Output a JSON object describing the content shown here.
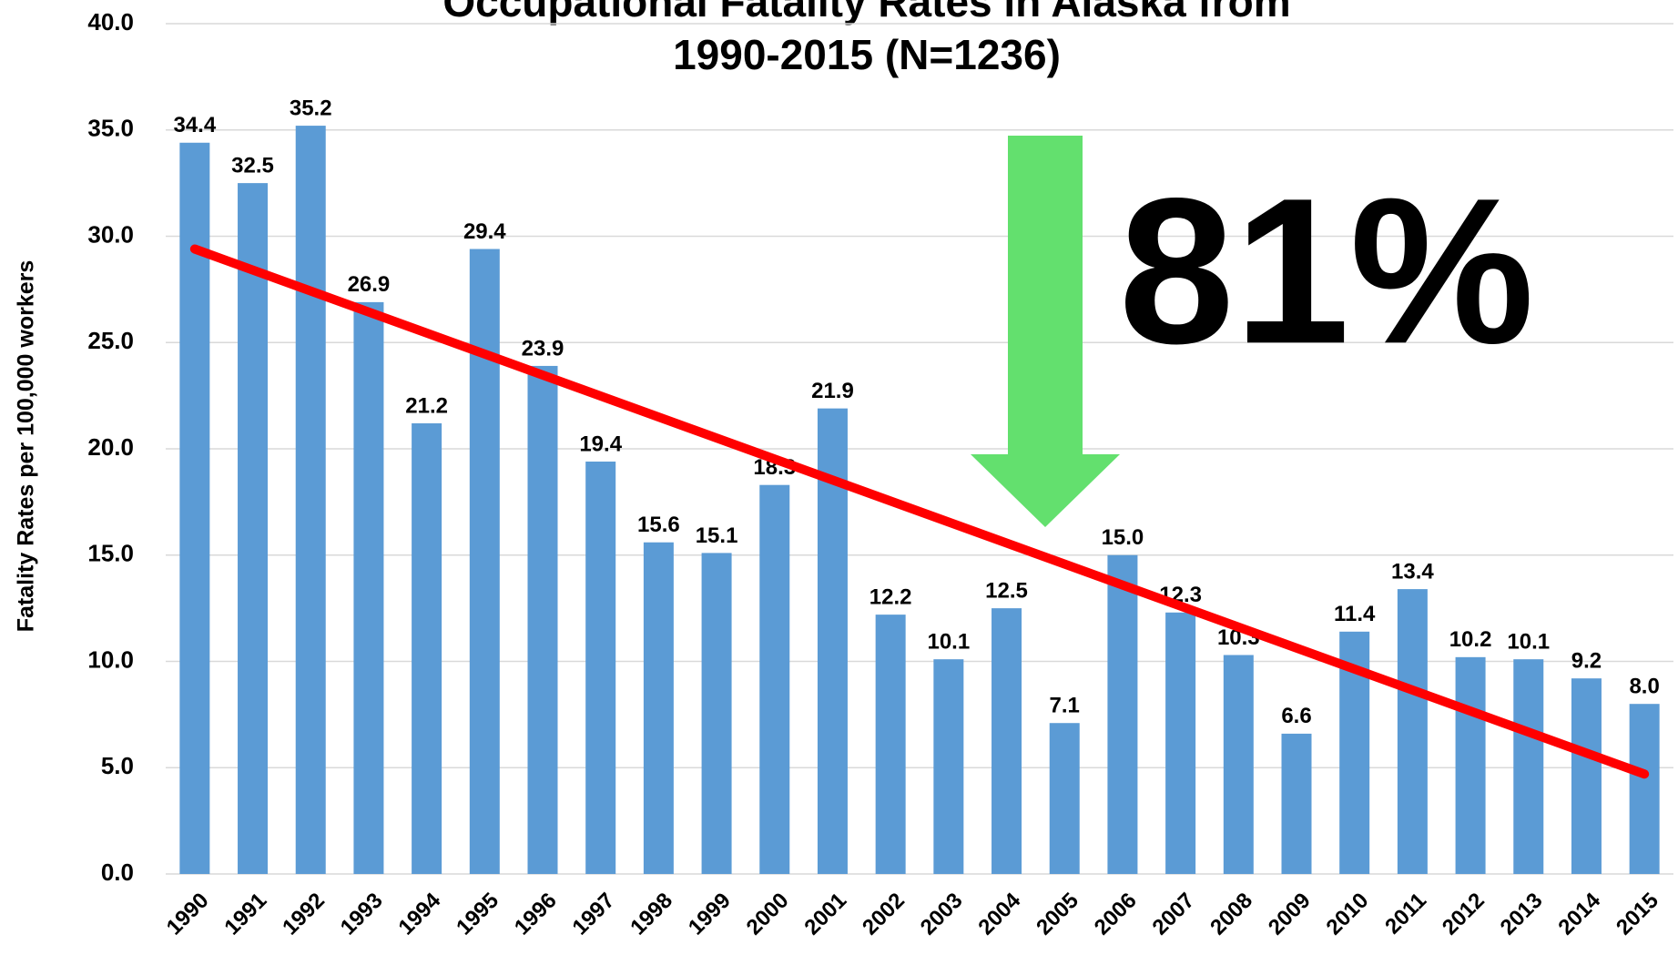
{
  "chart_data": {
    "type": "bar",
    "title": [
      "Occupational Fatality Rates in Alaska from",
      "1990-2015 (N=1236)"
    ],
    "y_axis_label": "Fatality Rates per 100,000 workers",
    "annotation": "81%",
    "categories": [
      "1990",
      "1991",
      "1992",
      "1993",
      "1994",
      "1995",
      "1996",
      "1997",
      "1998",
      "1999",
      "2000",
      "2001",
      "2002",
      "2003",
      "2004",
      "2005",
      "2006",
      "2007",
      "2008",
      "2009",
      "2010",
      "2011",
      "2012",
      "2013",
      "2014",
      "2015"
    ],
    "values": [
      34.4,
      32.5,
      35.2,
      26.9,
      21.2,
      29.4,
      23.9,
      19.4,
      15.6,
      15.1,
      18.3,
      21.9,
      12.2,
      10.1,
      12.5,
      7.1,
      15,
      12.3,
      10.3,
      6.6,
      11.4,
      13.4,
      10.2,
      10.1,
      9.2,
      8
    ],
    "value_labels": [
      "34.4",
      "32.5",
      "35.2",
      "26.9",
      "21.2",
      "29.4",
      "23.9",
      "19.4",
      "15.6",
      "15.1",
      "18.3",
      "21.9",
      "12.2",
      "10.1",
      "12.5",
      "7.1",
      "15.0",
      "12.3",
      "10.3",
      "6.6",
      "11.4",
      "13.4",
      "10.2",
      "10.1",
      "9.2",
      "8.0"
    ],
    "color": "#5b9bd5",
    "trendline": {
      "color": "#ff0000",
      "start": 29.4,
      "end": 4.7
    },
    "ylim": [
      0,
      40
    ],
    "yticks": [
      {
        "value": 0,
        "label": "0.0"
      },
      {
        "value": 5,
        "label": "5.0"
      },
      {
        "value": 10,
        "label": "10.0"
      },
      {
        "value": 15,
        "label": "15.0"
      },
      {
        "value": 20,
        "label": "20.0"
      },
      {
        "value": 25,
        "label": "25.0"
      },
      {
        "value": 30,
        "label": "30.0"
      },
      {
        "value": 35,
        "label": "35.0"
      },
      {
        "value": 40,
        "label": "40.0"
      }
    ],
    "grid": true
  }
}
